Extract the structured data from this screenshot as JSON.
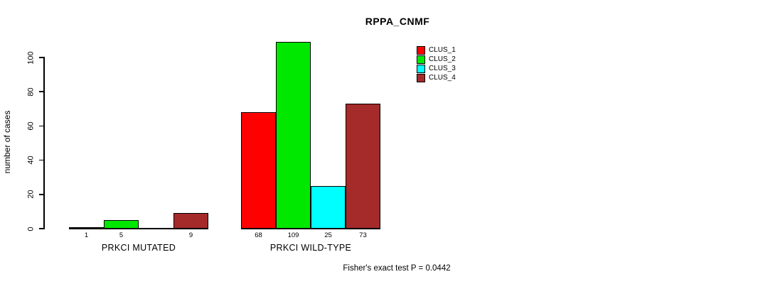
{
  "chart_data": {
    "type": "bar",
    "title": "RPPA_CNMF",
    "ylabel": "number of cases",
    "xlabel": "",
    "ylim": [
      0,
      109
    ],
    "yticks": [
      0,
      20,
      40,
      60,
      80,
      100
    ],
    "grid": false,
    "legend_position": "top-right",
    "series": [
      {
        "name": "CLUS_1",
        "color": "#FF0000"
      },
      {
        "name": "CLUS_2",
        "color": "#00E800"
      },
      {
        "name": "CLUS_3",
        "color": "#00FFFF"
      },
      {
        "name": "CLUS_4",
        "color": "#A52A2A"
      }
    ],
    "groups": [
      {
        "label": "PRKCI MUTATED",
        "values": [
          1,
          5,
          0,
          9
        ],
        "bar_labels": [
          "1",
          "5",
          "",
          "9"
        ]
      },
      {
        "label": "PRKCI WILD-TYPE",
        "values": [
          68,
          109,
          25,
          73
        ],
        "bar_labels": [
          "68",
          "109",
          "25",
          "73"
        ]
      }
    ],
    "annotation": "Fisher's exact test P = 0.0442"
  },
  "colors": {
    "background": "#FFFFFF",
    "axis": "#000000",
    "text": "#000000"
  }
}
